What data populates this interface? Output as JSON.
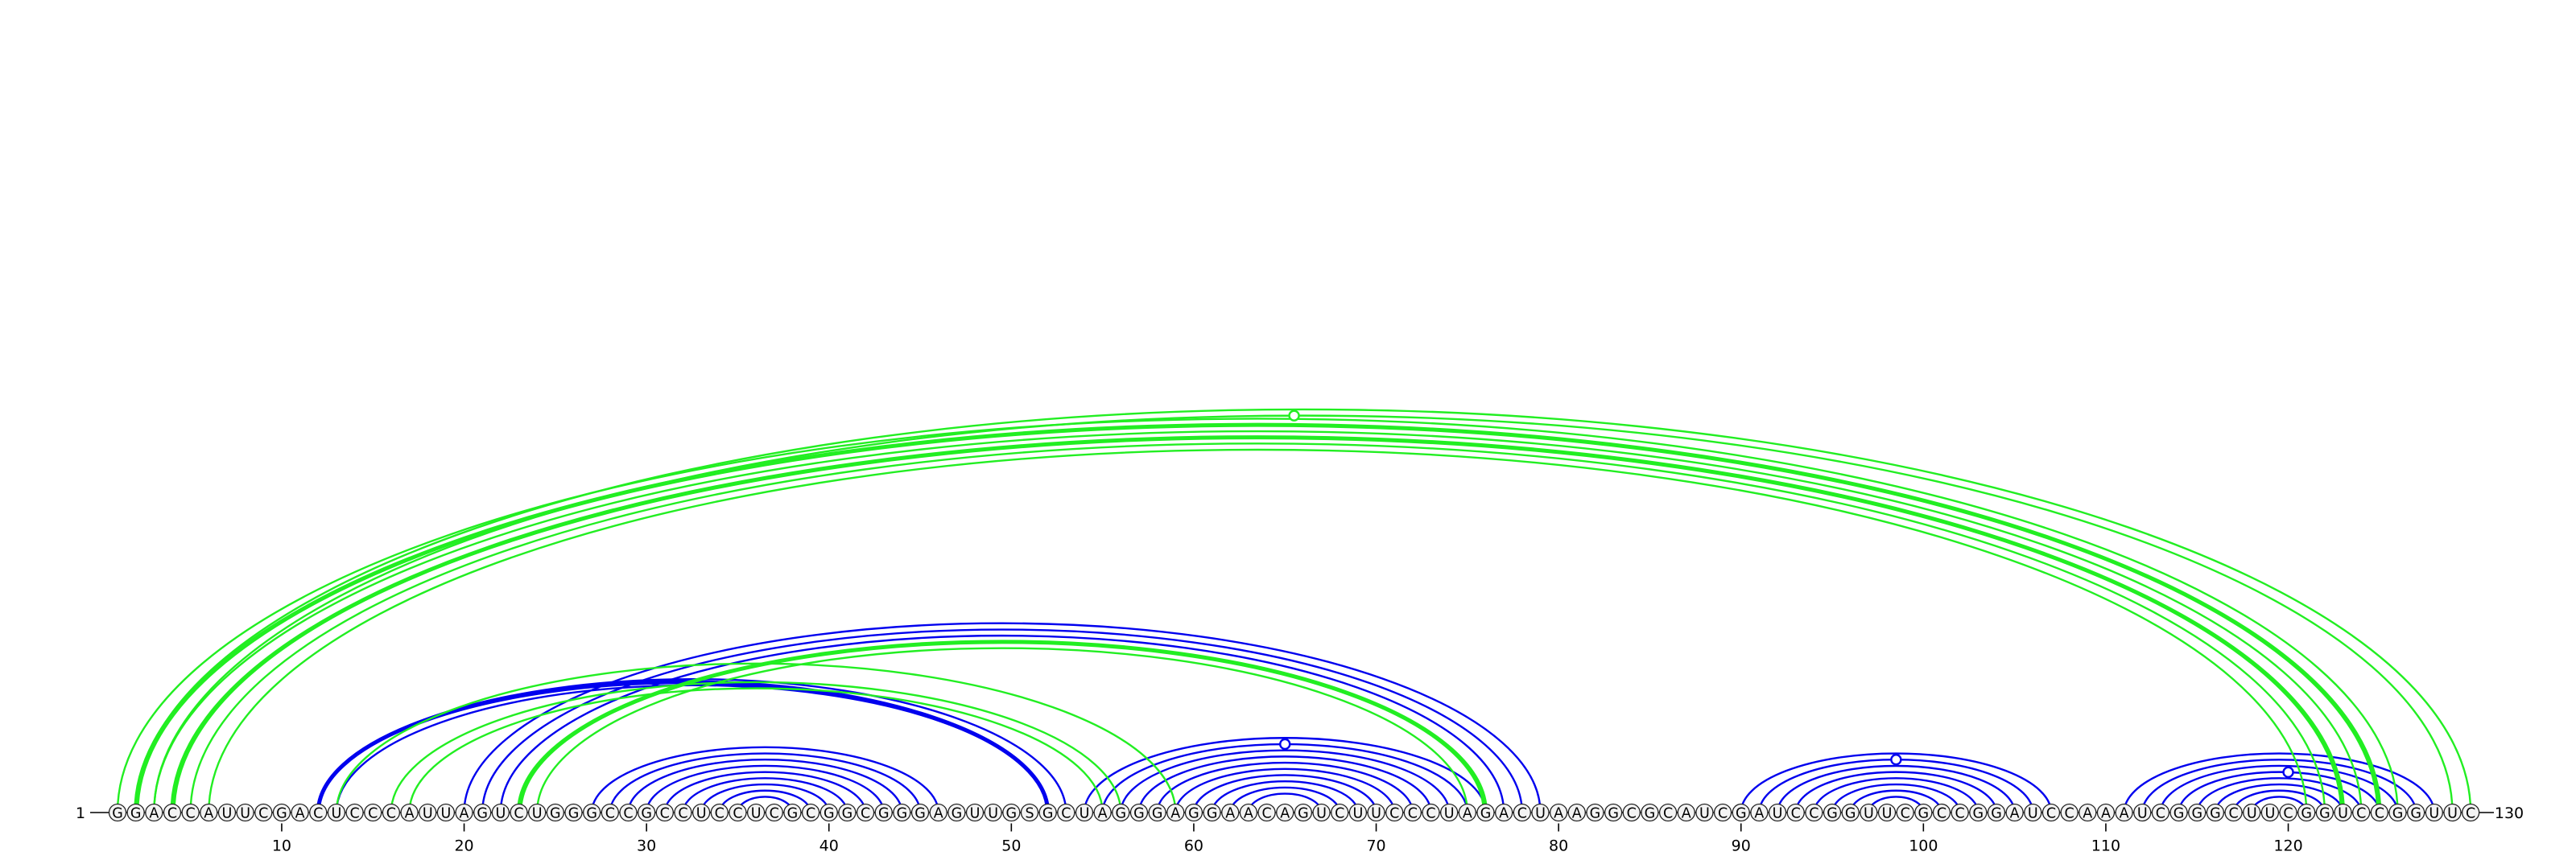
{
  "chart_data": {
    "type": "arc-diagram",
    "sequence": "GGACCAUUCGACUCCCAUUAGUCUGGGCCGCCUCCUCGCGGCGGGAGUUGSGCUAGGGAGGAACAGUCUUCCCUAGACUAAGGCGCAUCGAUCCGGUUCGCCGGAUCCAAAUCGGGCUUCGGUCCGGUUC",
    "length": 130,
    "start_label": "1",
    "end_label": "130",
    "ticks": [
      10,
      20,
      30,
      40,
      50,
      60,
      70,
      80,
      90,
      100,
      110,
      120
    ],
    "colors": {
      "blue": "#0000ee",
      "green": "#22ee22",
      "text": "#000000"
    },
    "stems": [
      {
        "color": "blue",
        "pairs": [
          [
            12,
            53
          ],
          [
            13,
            52
          ]
        ],
        "bold": [
          [
            12,
            52
          ]
        ]
      },
      {
        "color": "blue",
        "pairs": [
          [
            27,
            46
          ],
          [
            28,
            45
          ],
          [
            29,
            44
          ],
          [
            30,
            43
          ],
          [
            31,
            42
          ],
          [
            32,
            41
          ],
          [
            33,
            40
          ],
          [
            34,
            39
          ],
          [
            35,
            38
          ]
        ]
      },
      {
        "color": "blue",
        "pairs": [
          [
            20,
            79
          ],
          [
            21,
            78
          ],
          [
            22,
            77
          ],
          [
            23,
            76
          ]
        ]
      },
      {
        "color": "blue",
        "pairs": [
          [
            54,
            76
          ],
          [
            55,
            75
          ],
          [
            56,
            74
          ],
          [
            57,
            73
          ],
          [
            58,
            72
          ],
          [
            59,
            71
          ],
          [
            60,
            70
          ],
          [
            61,
            69
          ],
          [
            62,
            68
          ],
          [
            63,
            67
          ]
        ],
        "marker": [
          65,
          1
        ]
      },
      {
        "color": "blue",
        "pairs": [
          [
            90,
            107
          ],
          [
            91,
            106
          ],
          [
            92,
            105
          ],
          [
            93,
            104
          ],
          [
            94,
            103
          ],
          [
            95,
            102
          ],
          [
            96,
            101
          ],
          [
            97,
            100
          ]
        ],
        "marker": [
          98.5,
          1
        ]
      },
      {
        "color": "blue",
        "pairs": [
          [
            111,
            128
          ],
          [
            112,
            127
          ],
          [
            113,
            126
          ],
          [
            114,
            125
          ],
          [
            115,
            124
          ],
          [
            116,
            123
          ],
          [
            117,
            122
          ],
          [
            118,
            121
          ]
        ],
        "marker": [
          120,
          3
        ]
      },
      {
        "color": "green",
        "pairs": [
          [
            1,
            126
          ],
          [
            2,
            125
          ],
          [
            3,
            124
          ],
          [
            4,
            123
          ],
          [
            5,
            122
          ],
          [
            6,
            121
          ]
        ],
        "bold": [
          [
            2,
            125
          ],
          [
            4,
            123
          ]
        ]
      },
      {
        "color": "green",
        "pairs": [
          [
            2,
            130
          ],
          [
            3,
            129
          ]
        ],
        "marker": [
          65.5,
          1
        ]
      },
      {
        "color": "green",
        "pairs": [
          [
            16,
            56
          ],
          [
            17,
            55
          ]
        ]
      },
      {
        "color": "green",
        "pairs": [
          [
            13,
            59
          ]
        ]
      },
      {
        "color": "green",
        "pairs": [
          [
            23,
            76
          ],
          [
            24,
            75
          ]
        ],
        "bold": [
          [
            23,
            76
          ]
        ]
      }
    ]
  }
}
